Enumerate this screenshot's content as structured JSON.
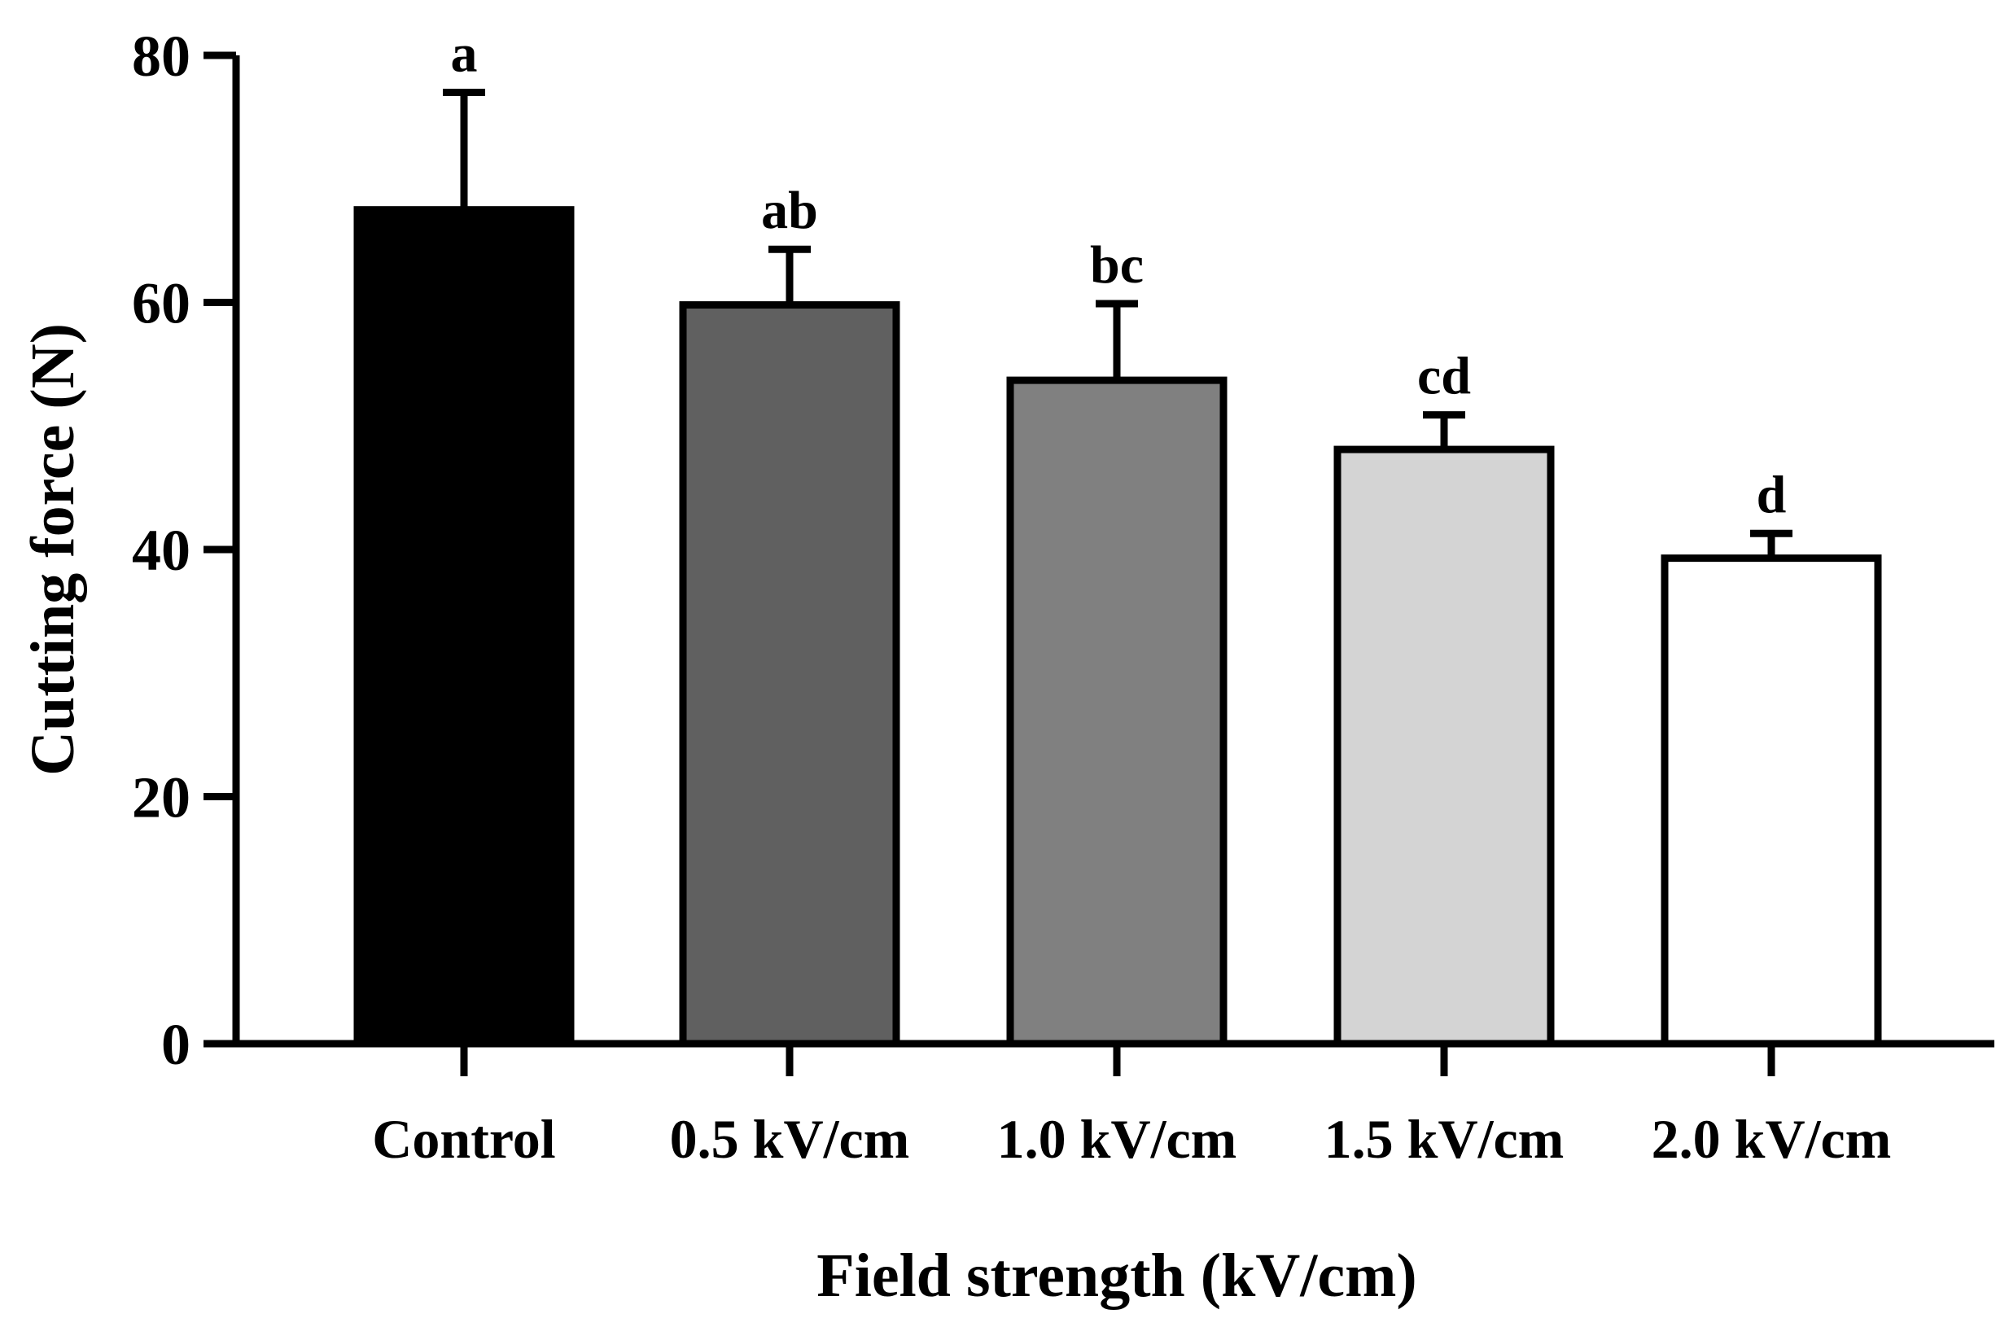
{
  "chart_data": {
    "type": "bar",
    "title": "",
    "xlabel": "Field strength (kV/cm)",
    "ylabel": "Cutting force (N)",
    "ylim": [
      0,
      80
    ],
    "yticks": [
      0,
      20,
      40,
      60,
      80
    ],
    "grid": false,
    "categories": [
      "Control",
      "0.5 kV/cm",
      "1.0 kV/cm",
      "1.5 kV/cm",
      "2.0 kV/cm"
    ],
    "values": [
      67.5,
      59.8,
      53.7,
      48.1,
      39.3
    ],
    "error_upper": [
      77.0,
      64.3,
      59.9,
      50.9,
      41.3
    ],
    "significance": [
      "a",
      "ab",
      "bc",
      "cd",
      "d"
    ],
    "colors": [
      "#000000",
      "#606060",
      "#808080",
      "#d4d4d4",
      "#ffffff"
    ]
  }
}
